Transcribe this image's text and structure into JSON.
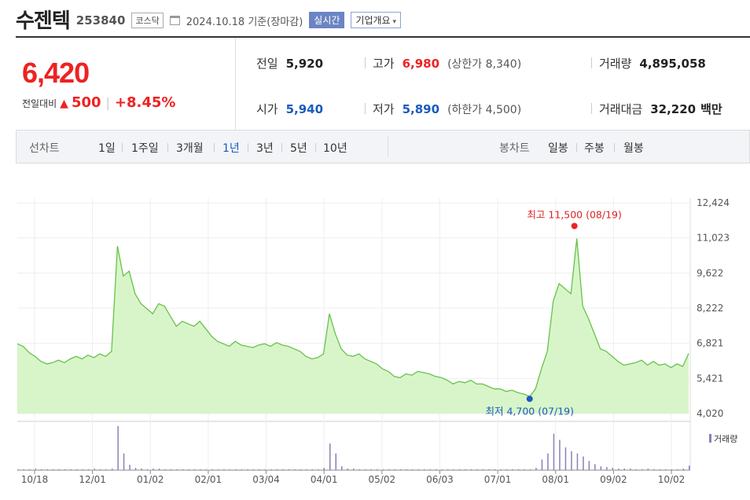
{
  "header": {
    "name": "수젠텍",
    "code": "253840",
    "market": "코스닥",
    "date": "2024.10.18",
    "date_suffix": "기준(장마감)",
    "realtime_label": "실시간",
    "company_info_label": "기업개요"
  },
  "quote": {
    "price": "6,420",
    "change_label": "전일대비",
    "change": "500",
    "change_pct": "+8.45%",
    "prev_close_label": "전일",
    "prev_close": "5,920",
    "open_label": "시가",
    "open": "5,940",
    "high_label": "고가",
    "high": "6,980",
    "upper_limit_label": "상한가",
    "upper_limit": "8,340",
    "low_label": "저가",
    "low": "5,890",
    "lower_limit_label": "하한가",
    "lower_limit": "4,500",
    "volume_label": "거래량",
    "volume": "4,895,058",
    "value_label": "거래대금",
    "value": "32,220",
    "value_unit": "백만"
  },
  "tabs": {
    "line_label": "선차트",
    "line_periods": [
      "1일",
      "1주일",
      "3개월",
      "1년",
      "3년",
      "5년",
      "10년"
    ],
    "line_active": "1년",
    "candle_label": "봉차트",
    "candle_periods": [
      "일봉",
      "주봉",
      "월봉"
    ]
  },
  "colors": {
    "up": "#ee2222",
    "down": "#1a5bbf",
    "line": "#66c24a",
    "fill": "#d8f5c9",
    "volume": "#8a7fb8"
  },
  "chart_data": {
    "type": "area",
    "y_ticks": [
      "12,424",
      "11,023",
      "9,622",
      "8,222",
      "6,821",
      "5,421",
      "4,020"
    ],
    "ylim": [
      4020,
      12424
    ],
    "x_ticks": [
      "10/18",
      "12/01",
      "01/02",
      "02/01",
      "03/04",
      "04/01",
      "05/02",
      "06/03",
      "07/01",
      "08/01",
      "09/02",
      "10/02"
    ],
    "series": [
      {
        "values": [
          6800,
          6700,
          6450,
          6300,
          6100,
          6000,
          6050,
          6150,
          6050,
          6200,
          6300,
          6200,
          6350,
          6250,
          6400,
          6300,
          6500,
          10700,
          9500,
          9700,
          8800,
          8400,
          8200,
          8000,
          8400,
          8300,
          7900,
          7500,
          7700,
          7600,
          7500,
          7700,
          7400,
          7100,
          6900,
          6800,
          6700,
          6900,
          6750,
          6700,
          6650,
          6750,
          6800,
          6700,
          6850,
          6750,
          6700,
          6600,
          6500,
          6300,
          6200,
          6250,
          6400,
          8000,
          7200,
          6600,
          6350,
          6300,
          6400,
          6200,
          6100,
          6000,
          5800,
          5700,
          5500,
          5450,
          5600,
          5550,
          5700,
          5650,
          5600,
          5500,
          5450,
          5350,
          5200,
          5300,
          5250,
          5350,
          5200,
          5200,
          5100,
          5000,
          5000,
          4900,
          4950,
          4850,
          4800,
          4700,
          5000,
          5800,
          6500,
          8500,
          9200,
          9000,
          8800,
          11000,
          8300,
          7800,
          7200,
          6600,
          6500,
          6300,
          6100,
          5950,
          6000,
          6050,
          6150,
          5950,
          6100,
          5950,
          6000,
          5850,
          6000,
          5900,
          6420
        ]
      }
    ],
    "annotations": [
      {
        "label": "최고",
        "value": "11,500",
        "date": "(08/19)"
      },
      {
        "label": "최저",
        "value": "4,700",
        "date": "(07/19)"
      }
    ],
    "volume_label": "거래량",
    "volume": [
      1,
      1,
      1,
      2,
      1,
      1,
      1,
      1,
      1,
      1,
      1,
      1,
      1,
      2,
      1,
      1,
      2,
      58,
      22,
      7,
      3,
      2,
      1,
      2,
      2,
      1,
      1,
      1,
      1,
      1,
      1,
      1,
      1,
      1,
      1,
      1,
      1,
      1,
      1,
      1,
      1,
      1,
      1,
      1,
      1,
      1,
      1,
      1,
      1,
      1,
      1,
      1,
      3,
      35,
      22,
      5,
      2,
      2,
      1,
      1,
      1,
      1,
      1,
      1,
      1,
      1,
      1,
      1,
      1,
      1,
      1,
      1,
      1,
      1,
      1,
      1,
      1,
      1,
      1,
      1,
      1,
      1,
      1,
      1,
      1,
      1,
      1,
      1,
      3,
      14,
      22,
      48,
      40,
      30,
      25,
      22,
      18,
      12,
      8,
      5,
      4,
      3,
      2,
      2,
      2,
      1,
      1,
      2,
      1,
      1,
      1,
      1,
      1,
      2,
      6
    ]
  }
}
